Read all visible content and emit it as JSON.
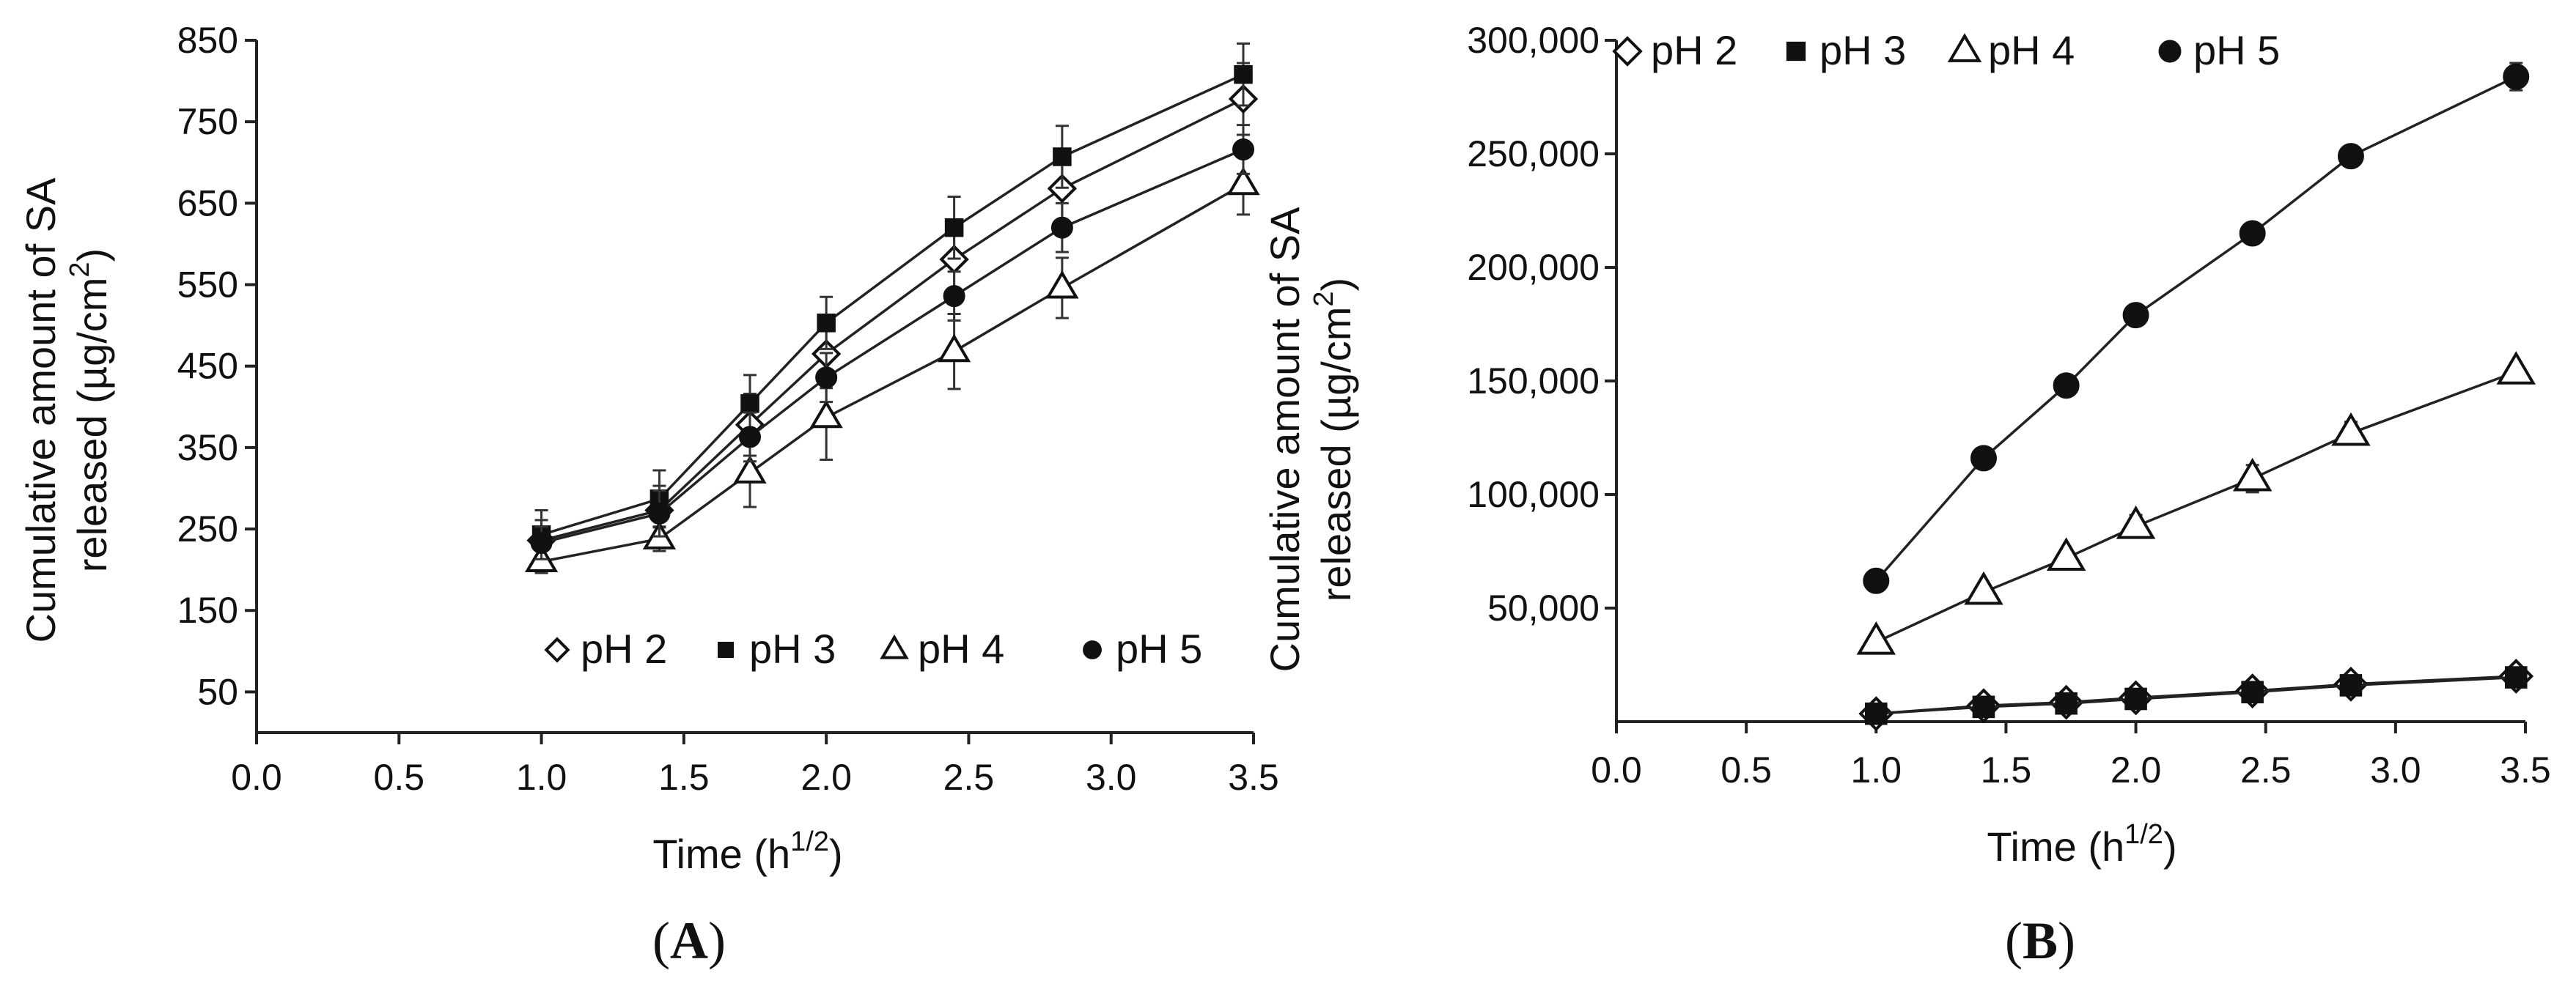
{
  "chart_data": [
    {
      "type": "line",
      "panel_label": "A",
      "title": "",
      "xlabel": "Time",
      "xlabel_unit_base": "(h",
      "xlabel_unit_sup": "1/2",
      "xlabel_unit_close": ")",
      "ylabel_line1": "Cumulative amount of SA",
      "ylabel_line2_pre": "released (µg/cm",
      "ylabel_line2_sup": "2",
      "ylabel_line2_post": ")",
      "xlim": [
        0.0,
        3.5
      ],
      "ylim": [
        0,
        850
      ],
      "xticks": [
        0.0,
        0.5,
        1.0,
        1.5,
        2.0,
        2.5,
        3.0,
        3.5
      ],
      "xtick_labels": [
        "0.0",
        "0.5",
        "1.0",
        "1.5",
        "2.0",
        "2.5",
        "3.0",
        "3.5"
      ],
      "yticks": [
        50,
        150,
        250,
        350,
        450,
        550,
        650,
        750,
        850
      ],
      "ytick_labels": [
        "50",
        "150",
        "250",
        "350",
        "450",
        "550",
        "650",
        "750",
        "850"
      ],
      "grid": false,
      "legend_position": "bottom-right",
      "x": [
        1.0,
        1.414,
        1.732,
        2.0,
        2.449,
        2.828,
        3.464
      ],
      "series": [
        {
          "name": "pH 2",
          "marker": "open-diamond",
          "values": [
            236,
            273,
            378,
            465,
            581,
            668,
            778
          ],
          "errors": [
            25,
            30,
            38,
            42,
            44,
            44,
            44
          ]
        },
        {
          "name": "pH 3",
          "marker": "filled-square",
          "values": [
            243,
            287,
            404,
            503,
            620,
            707,
            808
          ],
          "errors": [
            30,
            35,
            35,
            32,
            38,
            38,
            38
          ]
        },
        {
          "name": "pH 4",
          "marker": "open-triangle",
          "values": [
            210,
            238,
            319,
            387,
            468,
            546,
            673
          ],
          "errors": [
            14,
            15,
            42,
            52,
            46,
            37,
            37
          ]
        },
        {
          "name": "pH 5",
          "marker": "filled-circle",
          "values": [
            233,
            269,
            363,
            436,
            536,
            620,
            716
          ],
          "errors": [
            20,
            28,
            30,
            30,
            30,
            30,
            30
          ]
        }
      ]
    },
    {
      "type": "line",
      "panel_label": "B",
      "title": "",
      "xlabel": "Time",
      "xlabel_unit_base": "(h",
      "xlabel_unit_sup": "1/2",
      "xlabel_unit_close": ")",
      "ylabel_line1": "Cumulative amount of SA",
      "ylabel_line2_pre": "released (µg/cm",
      "ylabel_line2_sup": "2",
      "ylabel_line2_post": ")",
      "xlim": [
        0.0,
        3.5
      ],
      "ylim": [
        0,
        300000
      ],
      "xticks": [
        0.0,
        0.5,
        1.0,
        1.5,
        2.0,
        2.5,
        3.0,
        3.5
      ],
      "xtick_labels": [
        "0.0",
        "0.5",
        "1.0",
        "1.5",
        "2.0",
        "2.5",
        "3.0",
        "3.5"
      ],
      "yticks": [
        50000,
        100000,
        150000,
        200000,
        250000,
        300000
      ],
      "ytick_labels": [
        "50,000",
        "100,000",
        "150,000",
        "200,000",
        "250,000",
        "300,000"
      ],
      "grid": false,
      "legend_position": "top-left",
      "x": [
        1.0,
        1.414,
        1.732,
        2.0,
        2.449,
        2.828,
        3.464
      ],
      "series": [
        {
          "name": "pH 2",
          "marker": "open-diamond",
          "values": [
            3500,
            7000,
            8500,
            10500,
            13500,
            16500,
            20000
          ],
          "errors": [
            0,
            0,
            0,
            0,
            0,
            0,
            0
          ]
        },
        {
          "name": "pH 3",
          "marker": "filled-square",
          "values": [
            3500,
            6500,
            8000,
            10000,
            13000,
            16000,
            19500
          ],
          "errors": [
            0,
            0,
            0,
            0,
            0,
            0,
            0
          ]
        },
        {
          "name": "pH 4",
          "marker": "open-triangle",
          "values": [
            35000,
            57000,
            72000,
            86000,
            107000,
            127000,
            154000
          ],
          "errors": [
            2000,
            2500,
            3500,
            5000,
            6000,
            5000,
            4000
          ]
        },
        {
          "name": "pH 5",
          "marker": "filled-circle",
          "values": [
            62000,
            116000,
            148000,
            179000,
            215000,
            249000,
            284000
          ],
          "errors": [
            2000,
            2000,
            2000,
            2000,
            2000,
            2000,
            6000
          ]
        }
      ]
    }
  ]
}
